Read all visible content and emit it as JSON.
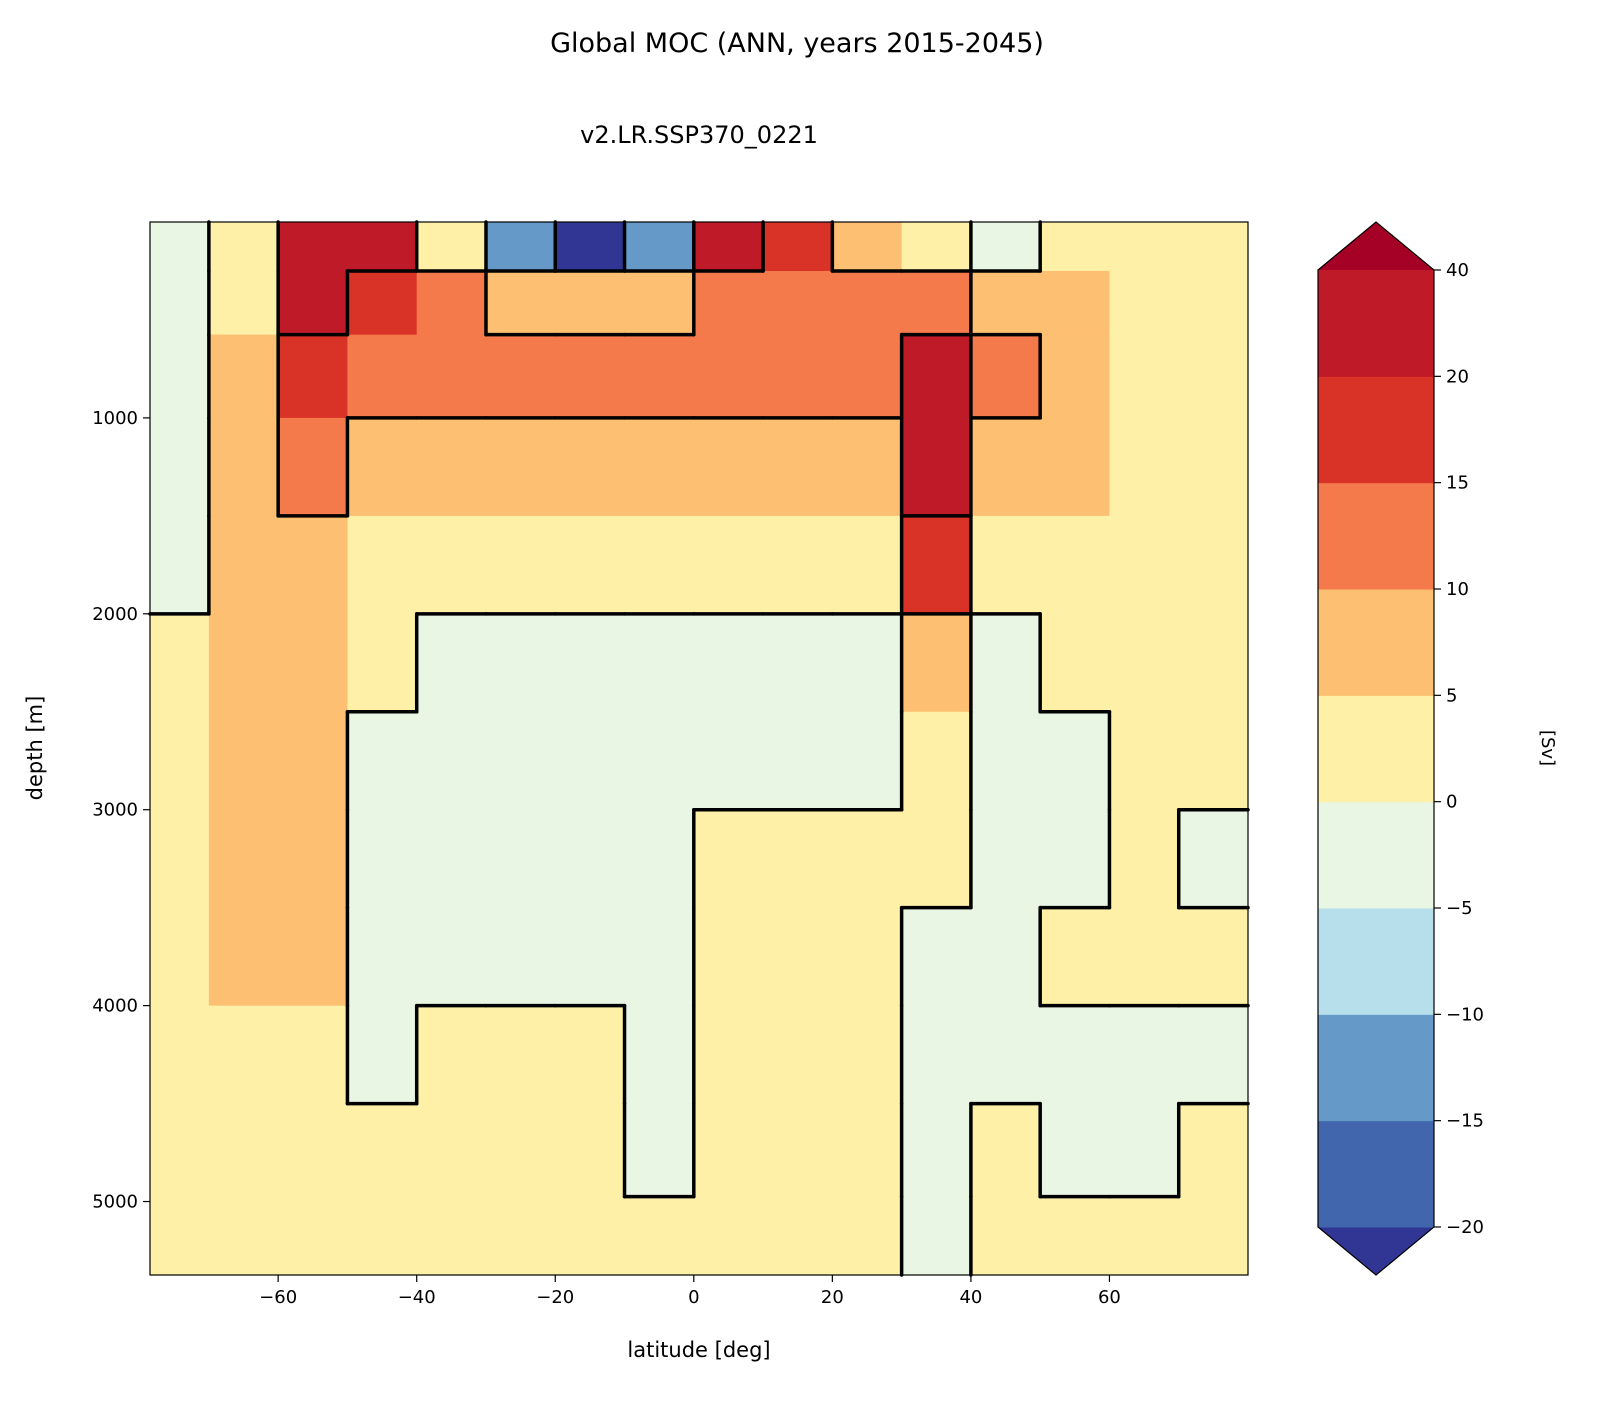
{
  "chart_data": {
    "type": "heatmap",
    "title": "Global MOC (ANN, years 2015-2045)",
    "subtitle": "v2.LR.SSP370_0221",
    "xlabel": "latitude [deg]",
    "ylabel": "depth [m]",
    "colorbar_label": "[Sv]",
    "xlim": [
      -78.5,
      80
    ],
    "ylim": [
      5375,
      0
    ],
    "y_inverted": true,
    "xticks": [
      -60,
      -40,
      -20,
      0,
      20,
      40,
      60
    ],
    "xtick_labels": [
      "−60",
      "−40",
      "−20",
      "0",
      "20",
      "40",
      "60"
    ],
    "yticks": [
      1000,
      2000,
      3000,
      4000,
      5000
    ],
    "ytick_labels": [
      "1000",
      "2000",
      "3000",
      "4000",
      "5000"
    ],
    "levels": [
      -20,
      -15,
      -10,
      -5,
      0,
      5,
      10,
      15,
      20,
      40
    ],
    "level_labels": [
      "−20",
      "−15",
      "−10",
      "−5",
      "0",
      "5",
      "10",
      "15",
      "20",
      "40"
    ],
    "colorbar_extend": "both",
    "colors": {
      "under": "#313695",
      "bands": [
        "#4166ad",
        "#6599c8",
        "#b6dfeb",
        "#e9f6e4",
        "#fff0a8",
        "#fdbf72",
        "#f47a4b",
        "#d93327",
        "#bf1a28"
      ],
      "over": "#a50026"
    },
    "contour_levels": [
      -20,
      -10,
      0,
      10,
      20,
      30
    ],
    "x": [
      -75,
      -65,
      -55,
      -45,
      -35,
      -25,
      -15,
      -5,
      5,
      15,
      25,
      35,
      45,
      55,
      65,
      75
    ],
    "y": [
      100,
      400,
      750,
      1250,
      1750,
      2250,
      2750,
      3250,
      3750,
      4250,
      4750,
      5200
    ],
    "values": [
      [
        -1,
        3,
        22,
        22,
        3,
        -12,
        -22,
        -12,
        22,
        17,
        7,
        3,
        -1,
        3,
        3,
        3
      ],
      [
        -1,
        3,
        22,
        17,
        12,
        7,
        7,
        7,
        12,
        12,
        12,
        12,
        7,
        7,
        3,
        3
      ],
      [
        -1,
        7,
        17,
        12,
        12,
        12,
        12,
        12,
        12,
        12,
        12,
        22,
        12,
        7,
        3,
        3
      ],
      [
        -1,
        7,
        12,
        7,
        7,
        7,
        7,
        7,
        7,
        7,
        7,
        22,
        7,
        7,
        3,
        3
      ],
      [
        -1,
        7,
        7,
        3,
        3,
        3,
        3,
        3,
        3,
        3,
        3,
        17,
        3,
        3,
        3,
        3
      ],
      [
        3,
        7,
        7,
        3,
        -1,
        -1,
        -1,
        -1,
        -1,
        -1,
        -1,
        7,
        -1,
        3,
        3,
        3
      ],
      [
        3,
        7,
        7,
        -1,
        -1,
        -1,
        -1,
        -1,
        -1,
        -1,
        -1,
        3,
        -1,
        -1,
        3,
        3
      ],
      [
        3,
        7,
        7,
        -1,
        -1,
        -1,
        -1,
        -1,
        3,
        3,
        3,
        3,
        -1,
        -1,
        3,
        -1
      ],
      [
        3,
        7,
        7,
        -1,
        -1,
        -1,
        -1,
        -1,
        3,
        3,
        3,
        -1,
        -1,
        3,
        3,
        3
      ],
      [
        3,
        3,
        3,
        -1,
        3,
        3,
        3,
        -1,
        3,
        3,
        3,
        -1,
        -1,
        -1,
        -1,
        -1
      ],
      [
        3,
        3,
        3,
        3,
        3,
        3,
        3,
        -1,
        3,
        3,
        3,
        -1,
        3,
        -1,
        -1,
        3
      ],
      [
        3,
        3,
        3,
        3,
        3,
        3,
        3,
        3,
        3,
        3,
        3,
        -1,
        3,
        3,
        3,
        3
      ]
    ]
  }
}
